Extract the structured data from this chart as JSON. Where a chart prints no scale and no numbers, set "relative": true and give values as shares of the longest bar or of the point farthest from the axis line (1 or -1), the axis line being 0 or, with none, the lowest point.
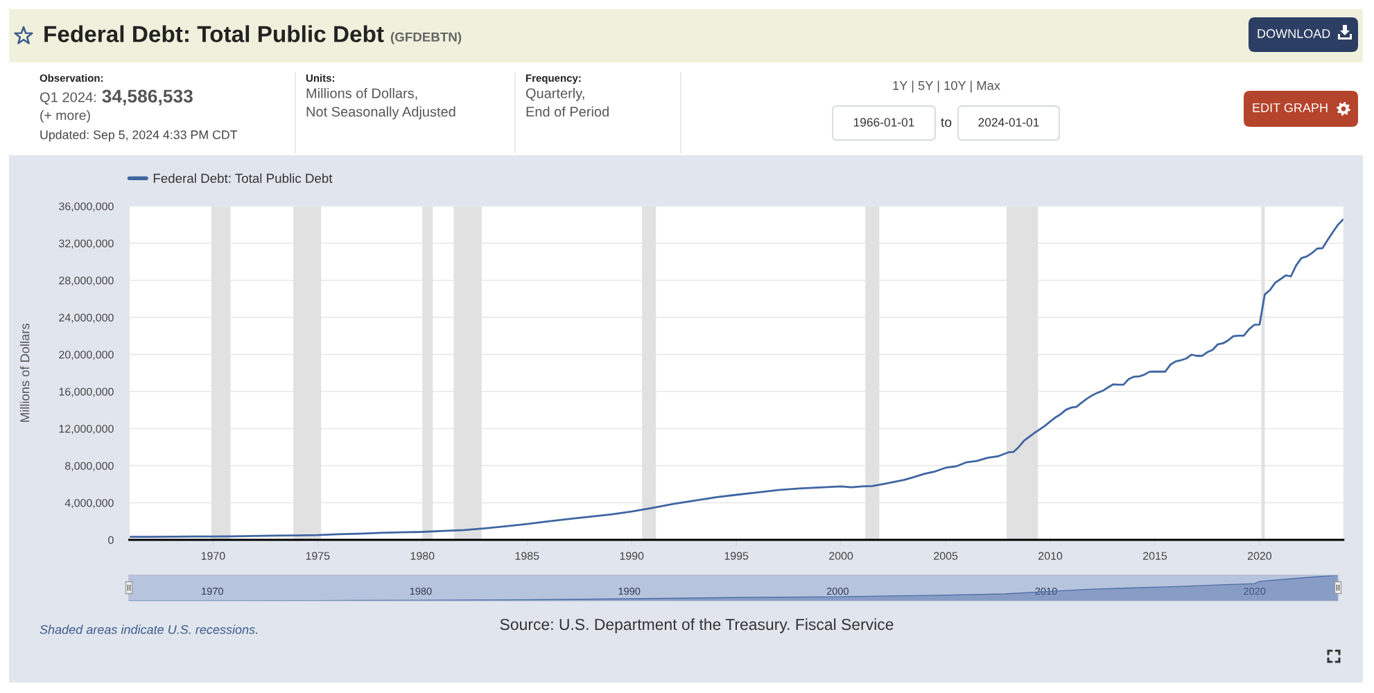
{
  "chart_data": [
    {
      "type": "line",
      "title": "Federal Debt: Total Public Debt",
      "subtitle": "(GFDEBTN)",
      "ylabel": "Millions of Dollars",
      "x": [
        "1966-01",
        "1967-01",
        "1968-01",
        "1969-01",
        "1970-01",
        "1971-01",
        "1972-01",
        "1973-01",
        "1974-01",
        "1975-01",
        "1976-01",
        "1977-01",
        "1978-01",
        "1979-01",
        "1980-01",
        "1981-01",
        "1982-01",
        "1983-01",
        "1984-01",
        "1985-01",
        "1986-01",
        "1987-01",
        "1988-01",
        "1989-01",
        "1990-01",
        "1991-01",
        "1992-01",
        "1993-01",
        "1994-01",
        "1995-01",
        "1996-01",
        "1997-01",
        "1998-01",
        "1999-01",
        "2000-01",
        "2000-07",
        "2001-01",
        "2001-07",
        "2002-01",
        "2002-07",
        "2003-01",
        "2003-07",
        "2004-01",
        "2004-07",
        "2005-01",
        "2005-07",
        "2006-01",
        "2006-07",
        "2007-01",
        "2007-07",
        "2008-01",
        "2008-04",
        "2008-07",
        "2008-10",
        "2009-01",
        "2009-04",
        "2009-07",
        "2009-10",
        "2010-01",
        "2010-04",
        "2010-07",
        "2010-10",
        "2011-01",
        "2011-04",
        "2011-07",
        "2011-10",
        "2012-01",
        "2012-04",
        "2012-07",
        "2012-10",
        "2013-01",
        "2013-04",
        "2013-07",
        "2013-10",
        "2014-01",
        "2014-04",
        "2014-07",
        "2014-10",
        "2015-01",
        "2015-04",
        "2015-07",
        "2015-10",
        "2016-01",
        "2016-04",
        "2016-07",
        "2016-10",
        "2017-01",
        "2017-04",
        "2017-07",
        "2017-10",
        "2018-01",
        "2018-04",
        "2018-07",
        "2018-10",
        "2019-01",
        "2019-04",
        "2019-07",
        "2019-10",
        "2020-01",
        "2020-04",
        "2020-07",
        "2020-10",
        "2021-01",
        "2021-04",
        "2021-07",
        "2021-10",
        "2022-01",
        "2022-04",
        "2022-07",
        "2022-10",
        "2023-01",
        "2023-04",
        "2023-07",
        "2023-10",
        "2024-01"
      ],
      "series": [
        {
          "name": "Federal Debt: Total Public Debt",
          "color": "#3f65a1",
          "values": [
            320000,
            330000,
            350000,
            360000,
            370000,
            390000,
            420000,
            450000,
            480000,
            510000,
            600000,
            670000,
            750000,
            820000,
            860000,
            960000,
            1060000,
            1240000,
            1460000,
            1710000,
            1990000,
            2250000,
            2500000,
            2740000,
            3050000,
            3440000,
            3880000,
            4230000,
            4580000,
            4860000,
            5120000,
            5380000,
            5540000,
            5650000,
            5770000,
            5670000,
            5770000,
            5810000,
            6010000,
            6230000,
            6460000,
            6780000,
            7130000,
            7380000,
            7780000,
            7930000,
            8370000,
            8510000,
            8850000,
            9010000,
            9440000,
            9490000,
            10020000,
            10700000,
            11130000,
            11550000,
            11910000,
            12310000,
            12770000,
            13200000,
            13560000,
            14030000,
            14270000,
            14340000,
            14790000,
            15220000,
            15580000,
            15860000,
            16070000,
            16430000,
            16770000,
            16740000,
            16740000,
            17350000,
            17600000,
            17630000,
            17820000,
            18140000,
            18150000,
            18150000,
            18150000,
            18920000,
            19260000,
            19380000,
            19570000,
            19980000,
            19850000,
            19840000,
            20240000,
            20490000,
            21090000,
            21200000,
            21520000,
            21970000,
            22030000,
            22020000,
            22720000,
            23200000,
            23230000,
            26480000,
            26950000,
            27750000,
            28130000,
            28530000,
            28430000,
            29620000,
            30400000,
            30570000,
            30930000,
            31420000,
            31460000,
            32330000,
            33170000,
            34000000,
            34586533
          ]
        }
      ],
      "xlim": [
        "1966-01-01",
        "2024-01-01"
      ],
      "ylim": [
        0,
        36000000
      ],
      "xticks": [
        {
          "value": "1970",
          "label": "1970"
        },
        {
          "value": "1975",
          "label": "1975"
        },
        {
          "value": "1980",
          "label": "1980"
        },
        {
          "value": "1985",
          "label": "1985"
        },
        {
          "value": "1990",
          "label": "1990"
        },
        {
          "value": "1995",
          "label": "1995"
        },
        {
          "value": "2000",
          "label": "2000"
        },
        {
          "value": "2005",
          "label": "2005"
        },
        {
          "value": "2010",
          "label": "2010"
        },
        {
          "value": "2015",
          "label": "2015"
        },
        {
          "value": "2020",
          "label": "2020"
        }
      ],
      "yticks": [
        0,
        {
          "value": 4000000,
          "label": "4,000,000"
        },
        {
          "value": 8000000,
          "label": "8,000,000"
        },
        {
          "value": 12000000,
          "label": "12,000,000"
        },
        {
          "value": 16000000,
          "label": "16,000,000"
        },
        {
          "value": 20000000,
          "label": "20,000,000"
        },
        {
          "value": 24000000,
          "label": "24,000,000"
        },
        {
          "value": 28000000,
          "label": "28,000,000"
        },
        {
          "value": 32000000,
          "label": "32,000,000"
        },
        {
          "value": 36000000,
          "label": "36,000,000"
        }
      ],
      "grid": "y",
      "legend": "top left",
      "bands": [
        {
          "axis": "x",
          "from": "1969-12",
          "to": "1970-11",
          "color": "#e1e1e1"
        },
        {
          "axis": "x",
          "from": "1973-11",
          "to": "1975-03",
          "color": "#e1e1e1"
        },
        {
          "axis": "x",
          "from": "1980-01",
          "to": "1980-07",
          "color": "#e1e1e1"
        },
        {
          "axis": "x",
          "from": "1981-07",
          "to": "1982-11",
          "color": "#e1e1e1"
        },
        {
          "axis": "x",
          "from": "1990-07",
          "to": "1991-03",
          "color": "#e1e1e1"
        },
        {
          "axis": "x",
          "from": "2001-03",
          "to": "2001-11",
          "color": "#e1e1e1"
        },
        {
          "axis": "x",
          "from": "2007-12",
          "to": "2009-06",
          "color": "#e1e1e1"
        },
        {
          "axis": "x",
          "from": "2020-02",
          "to": "2020-04",
          "color": "#e1e1e1"
        }
      ],
      "annotations": [
        "DOWNLOAD",
        "Observation:",
        "Q1 2024:",
        "34,586,533",
        "(+ more)",
        "Updated: Sep 5, 2024 4:33 PM CDT",
        "Units:",
        "Millions of Dollars,\nNot Seasonally Adjusted",
        "Frequency:",
        "Quarterly,\nEnd of Period",
        "1Y | 5Y | 10Y | Max",
        "1966-01-01",
        "to",
        "2024-01-01",
        "EDIT GRAPH",
        "Shaded areas indicate U.S. recessions.",
        "Source: U.S. Department of the Treasury. Fiscal Service"
      ]
    },
    {
      "type": "area",
      "relative": true,
      "x": [
        "1966-01",
        "1970-01",
        "1975-01",
        "1980-01",
        "1985-01",
        "1990-01",
        "1995-01",
        "2000-01",
        "2005-01",
        "2008-01",
        "2010-01",
        "2012-01",
        "2014-01",
        "2016-01",
        "2018-01",
        "2020-01",
        "2020-04",
        "2022-01",
        "2024-01"
      ],
      "series": [
        {
          "color": "#4f6fa9",
          "values": [
            0,
            0,
            0.01,
            0.02,
            0.04,
            0.08,
            0.13,
            0.16,
            0.22,
            0.27,
            0.36,
            0.45,
            0.5,
            0.55,
            0.61,
            0.67,
            0.76,
            0.88,
            1
          ]
        }
      ],
      "xlim": [
        "1966-01-01",
        "2024-01-01"
      ],
      "xticks": [
        {
          "value": "1970",
          "label": "1970"
        },
        {
          "value": "1980",
          "label": "1980"
        },
        {
          "value": "1990",
          "label": "1990"
        },
        {
          "value": "2000",
          "label": "2000"
        },
        {
          "value": "2010",
          "label": "2010"
        },
        {
          "value": "2020",
          "label": "2020"
        }
      ]
    }
  ]
}
